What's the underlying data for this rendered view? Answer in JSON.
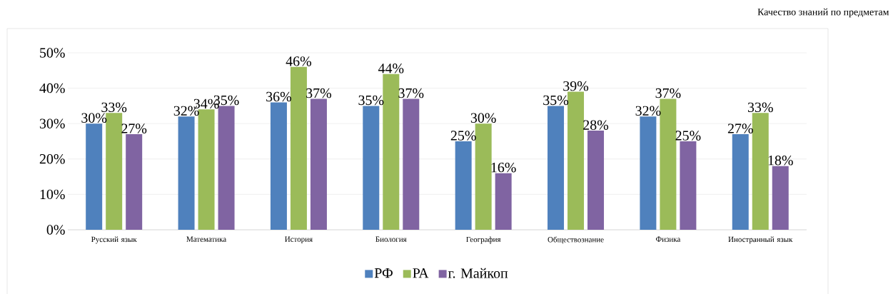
{
  "chart_data": {
    "type": "bar",
    "title": "Качество знаний по предметам",
    "categories": [
      "Русский язык",
      "Математика",
      "История",
      "Биология",
      "География",
      "Обществознание",
      "Физика",
      "Иностранный язык"
    ],
    "series": [
      {
        "name": "РФ",
        "color": "#4f81bd",
        "values": [
          30,
          32,
          36,
          35,
          25,
          35,
          32,
          27
        ],
        "value_labels": [
          "30%",
          "32%",
          "36%",
          "35%",
          "25%",
          "35%",
          "32%",
          "27%"
        ]
      },
      {
        "name": "РА",
        "color": "#9bbb59",
        "values": [
          33,
          34,
          46,
          44,
          30,
          39,
          37,
          33
        ],
        "value_labels": [
          "33%",
          "34%",
          "46%",
          "44%",
          "30%",
          "39%",
          "37%",
          "33%"
        ]
      },
      {
        "name": "г. Майкоп",
        "color": "#8064a2",
        "values": [
          27,
          35,
          37,
          37,
          16,
          28,
          25,
          18
        ],
        "value_labels": [
          "27%",
          "35%",
          "37%",
          "37%",
          "16%",
          "28%",
          "25%",
          "18%"
        ]
      }
    ],
    "ylim": [
      0,
      50
    ],
    "yticks": [
      {
        "value": 0,
        "label": "0%"
      },
      {
        "value": 10,
        "label": "10%"
      },
      {
        "value": 20,
        "label": "20%"
      },
      {
        "value": 30,
        "label": "30%"
      },
      {
        "value": 40,
        "label": "40%"
      },
      {
        "value": 50,
        "label": "50%"
      }
    ],
    "grid": "y",
    "legend": "bottom"
  }
}
